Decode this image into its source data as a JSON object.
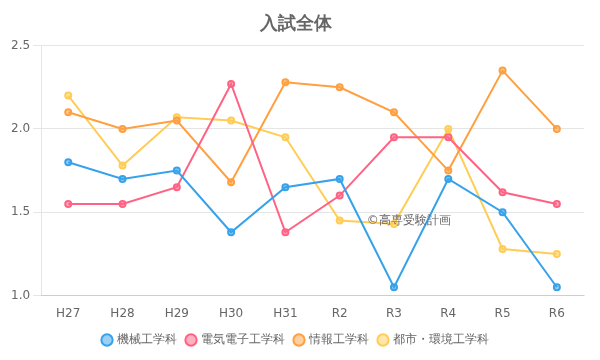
{
  "chart_data": {
    "type": "line",
    "title": "入試全体",
    "categories": [
      "H27",
      "H28",
      "H29",
      "H30",
      "H31",
      "R2",
      "R3",
      "R4",
      "R5",
      "R6"
    ],
    "series": [
      {
        "name": "機械工学科",
        "values": [
          1.8,
          1.7,
          1.75,
          1.38,
          1.65,
          1.7,
          1.05,
          1.7,
          1.5,
          1.05
        ]
      },
      {
        "name": "電気電子工学科",
        "values": [
          1.55,
          1.55,
          1.65,
          2.27,
          1.38,
          1.6,
          1.95,
          1.95,
          1.62,
          1.55
        ]
      },
      {
        "name": "情報工学科",
        "values": [
          2.1,
          2.0,
          2.05,
          1.68,
          2.28,
          2.25,
          2.1,
          1.75,
          2.35,
          2.0
        ]
      },
      {
        "name": "都市・環境工学科",
        "values": [
          2.2,
          1.78,
          2.07,
          2.05,
          1.95,
          1.45,
          1.43,
          2.0,
          1.28,
          1.25
        ]
      }
    ],
    "ylim": [
      1.0,
      2.5
    ],
    "yticks": [
      {
        "value": 1.0,
        "label": "1.0"
      },
      1.5,
      {
        "value": 2.0,
        "label": "2.0"
      },
      2.5
    ],
    "grid": true,
    "legend": "bottom",
    "marker": "circle",
    "annotations": [
      "©高専受験計画"
    ]
  }
}
